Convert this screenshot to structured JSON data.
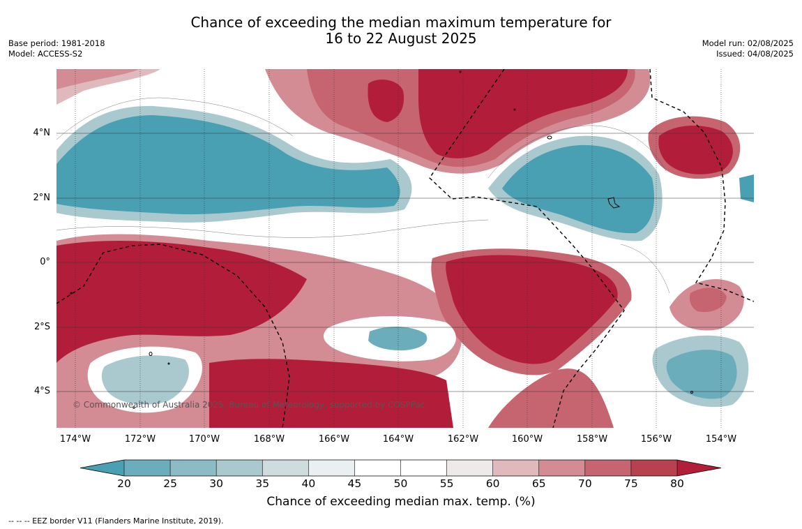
{
  "title": {
    "line1": "Chance of exceeding the median maximum temperature for",
    "line2": "16 to 22 August 2025"
  },
  "meta_left": {
    "base_period": "Base period: 1981-2018",
    "model": "Model: ACCESS-S2"
  },
  "meta_right": {
    "model_run": "Model run: 02/08/2025",
    "issued": "Issued: 04/08/2025"
  },
  "lat_labels": [
    "4°N",
    "2°N",
    "0°",
    "2°S",
    "4°S"
  ],
  "lon_labels": [
    "174°W",
    "172°W",
    "170°W",
    "168°W",
    "166°W",
    "164°W",
    "162°W",
    "160°W",
    "158°W",
    "156°W",
    "154°W"
  ],
  "copyright": "© Commonwealth of Australia 2025, Bureau of Meteorology, supported by COSPPac",
  "colorbar": {
    "ticks": [
      "20",
      "25",
      "30",
      "35",
      "40",
      "45",
      "50",
      "55",
      "60",
      "65",
      "70",
      "75",
      "80"
    ],
    "colors": [
      "#4aa0b3",
      "#6cadbc",
      "#8bbcc6",
      "#aac9cf",
      "#cfdcdd",
      "#eaf0f1",
      "#ffffff",
      "#ffffff",
      "#eeeaea",
      "#e0b9bd",
      "#d38b94",
      "#c6646f",
      "#b8414f",
      "#b21e3a"
    ],
    "title": "Chance of exceeding median max. temp. (%)"
  },
  "footnote": "--  --  -- EEZ border V11 (Flanders Marine Institute, 2019)."
}
